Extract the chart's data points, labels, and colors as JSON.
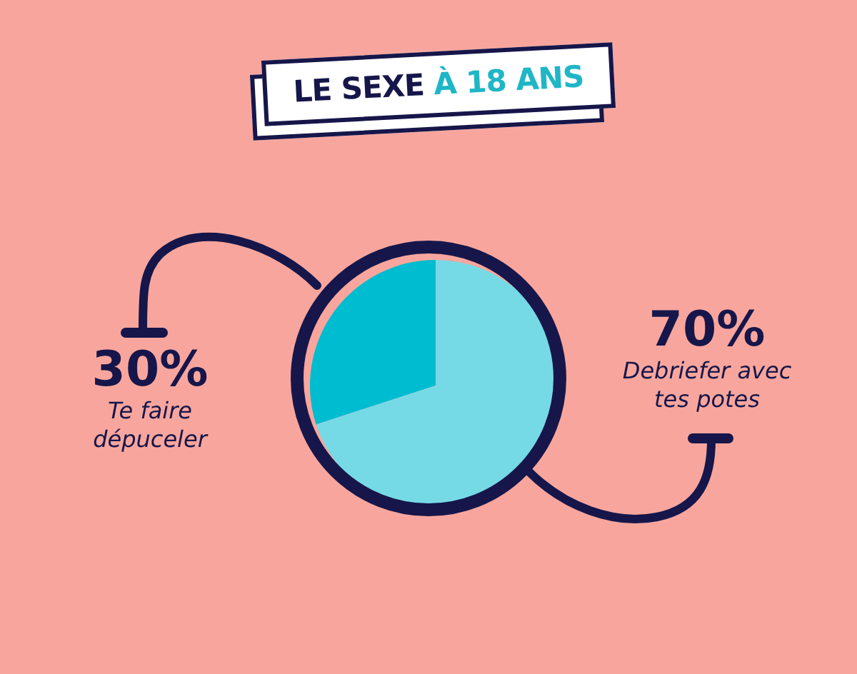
{
  "chart_data": {
    "type": "pie",
    "title": "LE SEXE À 18 ANS",
    "categories": [
      "Te faire dépuceler",
      "Debriefer avec tes potes"
    ],
    "values": [
      30,
      70
    ],
    "colors": [
      "#00bcd0",
      "#76dae6"
    ],
    "value_labels": [
      "30%",
      "70%"
    ],
    "legend": false
  }
}
